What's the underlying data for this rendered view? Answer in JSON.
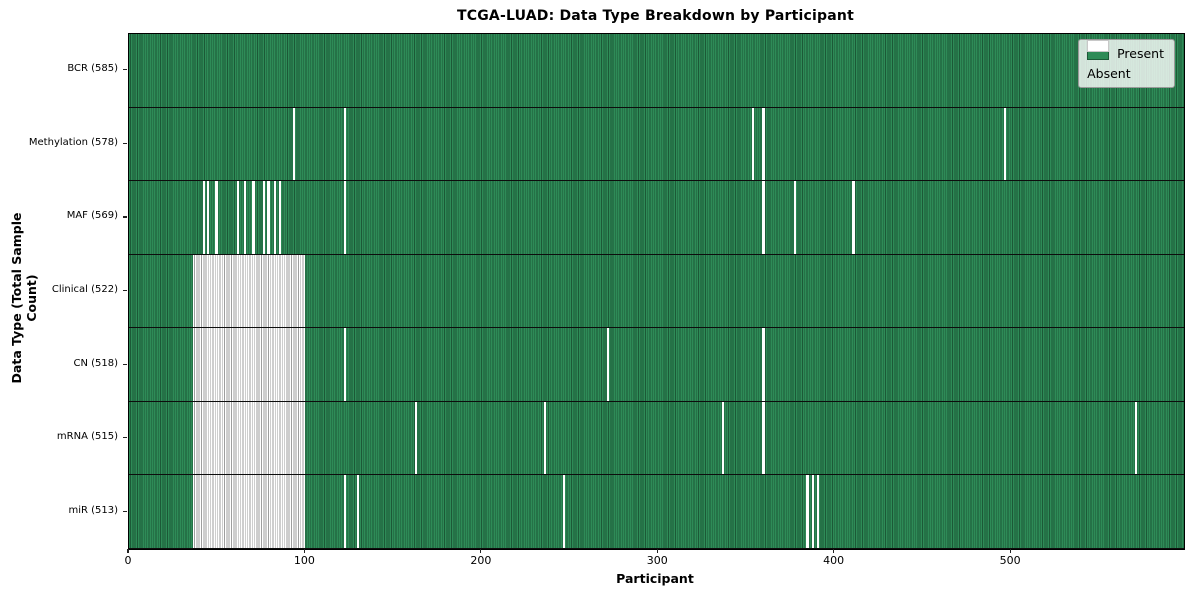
{
  "chart_data": {
    "type": "heatmap",
    "title": "TCGA-LUAD: Data Type Breakdown by Participant",
    "xlabel": "Participant",
    "ylabel": "Data Type (Total Sample Count)",
    "x_range": [
      0,
      598
    ],
    "x_ticks": [
      0,
      100,
      200,
      300,
      400,
      500
    ],
    "grid": false,
    "colors": {
      "present": "#2e8b57",
      "present_edge": "#1c5937",
      "absent": "#ffffff",
      "absent_edge": "#9e9e9e",
      "row_divider": "#0d0d0d"
    },
    "legend": {
      "position": "upper right",
      "items": [
        {
          "name": "present-swatch",
          "label": "Present",
          "color": "#2e8b57"
        },
        {
          "name": "absent-swatch",
          "label": "Absent",
          "color": "#ffffff"
        }
      ]
    },
    "rows": [
      {
        "label": "BCR (585)",
        "data_type": "BCR",
        "sample_count": 585,
        "absent": []
      },
      {
        "label": "Methylation (578)",
        "data_type": "Methylation",
        "sample_count": 578,
        "absent": [
          [
            93,
            94
          ],
          [
            122,
            123
          ],
          [
            353,
            354
          ],
          [
            359,
            360
          ],
          [
            496,
            497
          ]
        ]
      },
      {
        "label": "MAF (569)",
        "data_type": "MAF",
        "sample_count": 569,
        "absent": [
          [
            42,
            43
          ],
          [
            44,
            45
          ],
          [
            49,
            50
          ],
          [
            61,
            62
          ],
          [
            65,
            66
          ],
          [
            70,
            71
          ],
          [
            76,
            77
          ],
          [
            78.5,
            79.5
          ],
          [
            82,
            83
          ],
          [
            85,
            86
          ],
          [
            122,
            123
          ],
          [
            359,
            360
          ],
          [
            377,
            378
          ],
          [
            410,
            411
          ]
        ]
      },
      {
        "label": "Clinical (522)",
        "data_type": "Clinical",
        "sample_count": 522,
        "absent": [
          [
            36,
            100
          ]
        ]
      },
      {
        "label": "CN (518)",
        "data_type": "CN",
        "sample_count": 518,
        "absent": [
          [
            36,
            100
          ],
          [
            122,
            123
          ],
          [
            271,
            272
          ],
          [
            359,
            360
          ]
        ]
      },
      {
        "label": "mRNA (515)",
        "data_type": "mRNA",
        "sample_count": 515,
        "absent": [
          [
            36,
            100
          ],
          [
            162,
            163
          ],
          [
            235,
            236
          ],
          [
            336,
            337
          ],
          [
            359,
            360
          ],
          [
            570,
            571
          ]
        ]
      },
      {
        "label": "miR (513)",
        "data_type": "miR",
        "sample_count": 513,
        "absent": [
          [
            36,
            100
          ],
          [
            122,
            123
          ],
          [
            129,
            130
          ],
          [
            246,
            247
          ],
          [
            384,
            385
          ],
          [
            387,
            388
          ],
          [
            390,
            391
          ]
        ]
      }
    ]
  }
}
